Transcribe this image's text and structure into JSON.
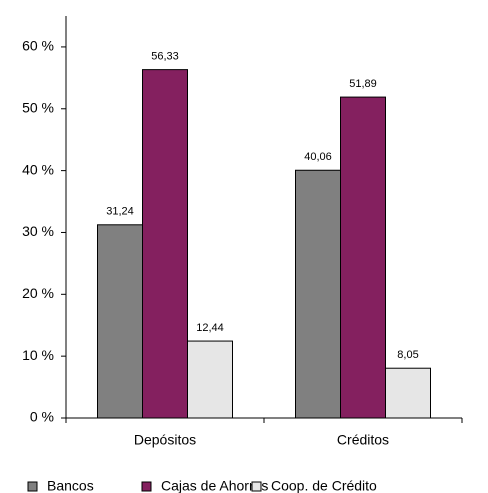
{
  "chart_data": {
    "type": "bar",
    "categories": [
      "Depósitos",
      "Créditos"
    ],
    "series": [
      {
        "name": "Bancos",
        "color": "#808080",
        "values": [
          31.24,
          40.06
        ],
        "value_labels": [
          "31,24",
          "40,06"
        ]
      },
      {
        "name": "Cajas de Ahorros",
        "color": "#84205f",
        "values": [
          56.33,
          51.89
        ],
        "value_labels": [
          "56,33",
          "51,89"
        ]
      },
      {
        "name": "Coop. de Crédito",
        "color": "#e6e6e6",
        "values": [
          12.44,
          8.05
        ],
        "value_labels": [
          "12,44",
          "8,05"
        ]
      }
    ],
    "ylim": [
      0,
      65
    ],
    "yticks": [
      {
        "value": 0,
        "label": "0 %"
      },
      {
        "value": 10,
        "label": "10 %"
      },
      {
        "value": 20,
        "label": "20 %"
      },
      {
        "value": 30,
        "label": "30 %"
      },
      {
        "value": 40,
        "label": "40 %"
      },
      {
        "value": 50,
        "label": "50 %"
      },
      {
        "value": 60,
        "label": "60 %"
      }
    ],
    "legend": "bottom"
  }
}
